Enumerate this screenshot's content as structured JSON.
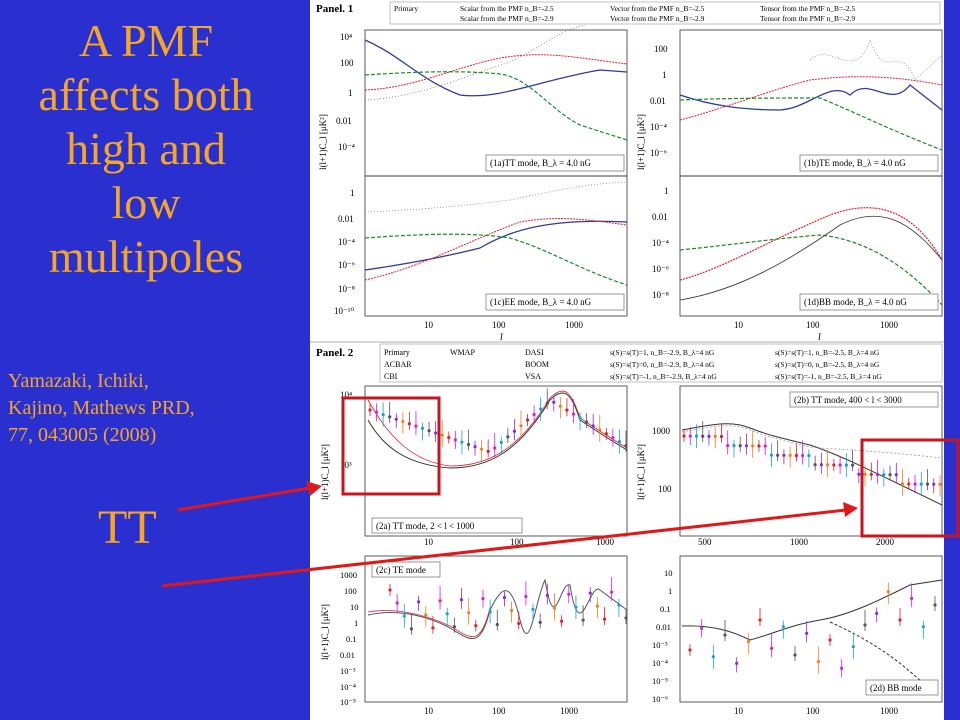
{
  "slide": {
    "title": "A PMF\naffects both\nhigh and\nlow\nmultipoles",
    "citation": "Yamazaki, Ichiki,\nKajino, Mathews PRD,\n77, 043005 (2008)",
    "mode_label": "TT",
    "colors": {
      "background": "#2a2fd0",
      "text": "#f5a623",
      "arrow": "#e01818",
      "highlight_box": "#c8141e"
    }
  },
  "figure": {
    "panel1": {
      "label": "Panel. 1",
      "legend": [
        "Primary",
        "Scalar from the PMF n_B=-2.5",
        "Vector from the PMF n_B=-2.5",
        "Tensor from the PMF n_B=-2.5",
        "Scalar from the PMF n_B=-2.9",
        "Vector from the PMF n_B=-2.9",
        "Tensor from the PMF n_B=-2.9"
      ],
      "ylabel": "l(l+1)C_l [μK²]",
      "xlabel": "l",
      "subplots": [
        {
          "id": "1a",
          "caption": "(1a)TT mode, B_λ = 4.0 nG",
          "yticks": [
            "10⁴",
            "100",
            "1",
            "0.01",
            "10⁻⁴"
          ]
        },
        {
          "id": "1b",
          "caption": "(1b)TE mode, B_λ = 4.0 nG",
          "yticks": [
            "100",
            "1",
            "0.01",
            "10⁻⁴",
            "10⁻⁶"
          ]
        },
        {
          "id": "1c",
          "caption": "(1c)EE mode, B_λ = 4.0 nG",
          "yticks": [
            "1",
            "0.01",
            "10⁻⁴",
            "10⁻⁶",
            "10⁻⁸",
            "10⁻¹⁰"
          ]
        },
        {
          "id": "1d",
          "caption": "(1d)BB mode, B_λ = 4.0 nG",
          "yticks": [
            "1",
            "0.01",
            "10⁻⁴",
            "10⁻⁶",
            "10⁻⁸"
          ]
        }
      ],
      "xticks": [
        "10",
        "100",
        "1000"
      ]
    },
    "panel2": {
      "label": "Panel. 2",
      "legend_experiments": [
        "Primary",
        "WMAP",
        "DASI",
        "ACBAR",
        "BOOM",
        "CBI",
        "VSA"
      ],
      "legend_models": [
        "s(S)=s(T)=1, n_B=-2.9, B_λ=4 nG",
        "s(S)=s(T)=0, n_B=-2.9, B_λ=4 nG",
        "s(S)=s(T)=-1, n_B=-2.9, B_λ=4 nG",
        "s(S)=s(T)=1, n_B=-2.5, B_λ=4 nG",
        "s(S)=s(T)=0, n_B=-2.5, B_λ=4 nG",
        "s(S)=s(T)=-1, n_B=-2.5, B_λ=4 nG"
      ],
      "subplots": [
        {
          "id": "2a",
          "caption": "(2a) TT mode, 2 < l < 1000",
          "yticks": [
            "10⁴",
            "10³"
          ],
          "xticks": [
            "10",
            "100",
            "1000"
          ]
        },
        {
          "id": "2b",
          "caption": "(2b) TT mode, 400 < l < 3000",
          "yticks": [
            "1000",
            "100"
          ],
          "xticks": [
            "500",
            "1000",
            "2000"
          ]
        },
        {
          "id": "2c",
          "caption": "(2c) TE mode",
          "yticks": [
            "1000",
            "100",
            "10",
            "1",
            "0.1",
            "0.01",
            "10⁻³",
            "10⁻⁴",
            "10⁻⁵"
          ],
          "xticks": [
            "10",
            "100",
            "1000"
          ]
        },
        {
          "id": "2d",
          "caption": "(2d) BB mode",
          "yticks": [
            "10",
            "1",
            "0.1",
            "0.01",
            "10⁻³",
            "10⁻⁴",
            "10⁻⁵",
            "10⁻⁶"
          ],
          "xticks": [
            "10",
            "100",
            "1000"
          ]
        }
      ]
    }
  }
}
